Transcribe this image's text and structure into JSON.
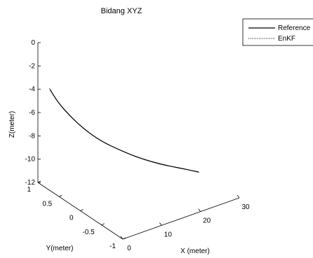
{
  "chart_data": {
    "type": "line",
    "projection": "3d",
    "title": "Bidang XYZ",
    "xlabel": "X (meter)",
    "ylabel": "Y(meter)",
    "zlabel": "Z(meter)",
    "xlim": [
      0,
      30
    ],
    "ylim": [
      -1,
      1
    ],
    "zlim": [
      -12,
      0
    ],
    "x_ticks": [
      "0",
      "10",
      "20",
      "30"
    ],
    "y_ticks": [
      "1",
      "0.5",
      "0",
      "-0.5",
      "-1"
    ],
    "z_ticks": [
      "0",
      "-2",
      "-4",
      "-6",
      "-8",
      "-10",
      "-12"
    ],
    "grid": false,
    "legend": {
      "placement": "top-right",
      "entries": [
        "Reference",
        "EnKF"
      ]
    },
    "series": [
      {
        "name": "Reference",
        "style": "solid",
        "color": "#000000",
        "points": [
          {
            "x": 2.0,
            "y": 0.9,
            "z": -4.0
          },
          {
            "x": 3.0,
            "y": 0.8,
            "z": -5.0
          },
          {
            "x": 4.5,
            "y": 0.65,
            "z": -6.0
          },
          {
            "x": 6.5,
            "y": 0.5,
            "z": -7.0
          },
          {
            "x": 9.0,
            "y": 0.33,
            "z": -7.9
          },
          {
            "x": 12.0,
            "y": 0.15,
            "z": -8.6
          },
          {
            "x": 15.0,
            "y": -0.02,
            "z": -9.2
          },
          {
            "x": 18.5,
            "y": -0.2,
            "z": -9.7
          },
          {
            "x": 22.0,
            "y": -0.35,
            "z": -10.1
          },
          {
            "x": 25.0,
            "y": -0.5,
            "z": -10.4
          }
        ]
      },
      {
        "name": "EnKF",
        "style": "dotted",
        "color": "#000000",
        "points": [
          {
            "x": 1.9,
            "y": 0.9,
            "z": -3.9
          },
          {
            "x": 3.1,
            "y": 0.79,
            "z": -5.1
          },
          {
            "x": 4.4,
            "y": 0.66,
            "z": -5.95
          },
          {
            "x": 6.6,
            "y": 0.49,
            "z": -7.05
          },
          {
            "x": 8.9,
            "y": 0.34,
            "z": -7.85
          },
          {
            "x": 12.1,
            "y": 0.14,
            "z": -8.65
          },
          {
            "x": 14.9,
            "y": -0.01,
            "z": -9.15
          },
          {
            "x": 18.6,
            "y": -0.21,
            "z": -9.75
          },
          {
            "x": 21.9,
            "y": -0.34,
            "z": -10.05
          },
          {
            "x": 25.1,
            "y": -0.51,
            "z": -10.45
          }
        ]
      }
    ]
  }
}
